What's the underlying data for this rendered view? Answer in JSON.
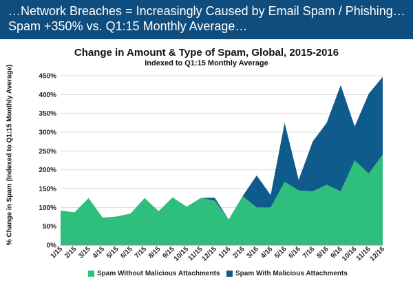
{
  "banner": {
    "line1": "…Network Breaches = Increasingly Caused by Email Spam / Phishing…",
    "line2": "Spam +350% vs. Q1:15 Monthly Average…"
  },
  "chart_data": {
    "type": "area",
    "title": "Change in Amount & Type of Spam, Global, 2015-2016",
    "subtitle": "Indexed to Q1:15 Monthly Average",
    "ylabel": "% Change in Spam (Indexed to Q1:15 Monthly Average)",
    "xlabel": "",
    "stacked": true,
    "ylim": [
      0,
      450
    ],
    "yticks": [
      0,
      50,
      100,
      150,
      200,
      250,
      300,
      350,
      400,
      450
    ],
    "ytick_labels": [
      "0%",
      "50%",
      "100%",
      "150%",
      "200%",
      "250%",
      "300%",
      "350%",
      "400%",
      "450%"
    ],
    "grid": true,
    "legend_position": "bottom",
    "categories": [
      "1/15",
      "2/15",
      "3/15",
      "4/15",
      "5/15",
      "6/15",
      "7/15",
      "8/15",
      "9/15",
      "10/15",
      "11/15",
      "12/15",
      "1/16",
      "2/16",
      "3/16",
      "4/16",
      "5/16",
      "6/16",
      "7/16",
      "8/16",
      "9/16",
      "10/16",
      "11/16",
      "12/16"
    ],
    "series": [
      {
        "name": "Spam Without Malicious Attachments",
        "color": "#2fbf7c",
        "values": [
          92,
          87,
          125,
          73,
          76,
          84,
          125,
          90,
          127,
          102,
          125,
          118,
          68,
          130,
          100,
          100,
          168,
          145,
          143,
          160,
          143,
          225,
          190,
          240
        ]
      },
      {
        "name": "Spam With Malicious Attachments",
        "color": "#0f5c8c",
        "values": [
          0,
          0,
          0,
          0,
          0,
          0,
          0,
          0,
          0,
          0,
          0,
          8,
          0,
          0,
          85,
          33,
          157,
          28,
          132,
          165,
          282,
          90,
          212,
          207
        ]
      }
    ]
  }
}
